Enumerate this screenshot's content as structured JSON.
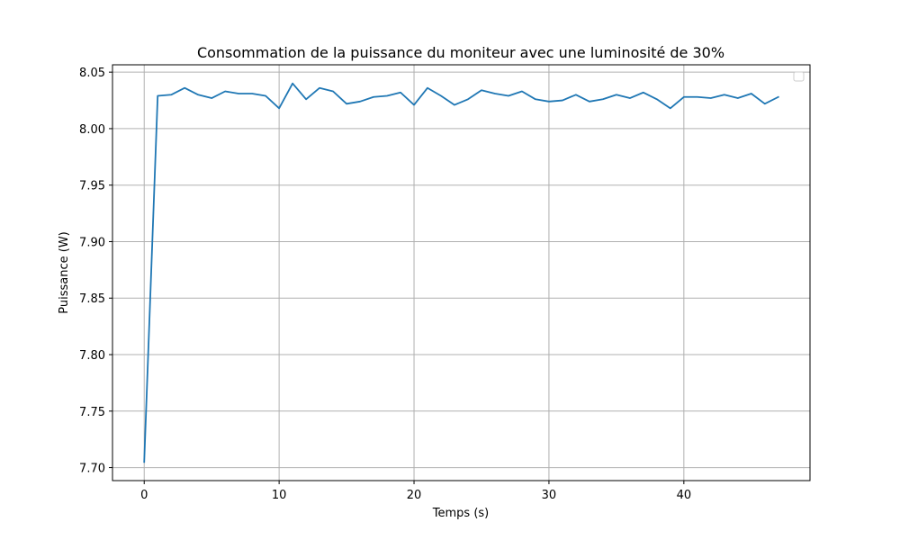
{
  "chart_data": {
    "type": "line",
    "title": "Consommation de la puissance du moniteur avec une luminosité de 30%",
    "xlabel": "Temps (s)",
    "ylabel": "Puissance (W)",
    "xlim": [
      -2.35,
      49.35
    ],
    "ylim": [
      7.6885,
      8.0565
    ],
    "xticks": [
      0,
      10,
      20,
      30,
      40
    ],
    "xtick_labels": [
      "0",
      "10",
      "20",
      "30",
      "40"
    ],
    "yticks": [
      7.7,
      7.75,
      7.8,
      7.85,
      7.9,
      7.95,
      8.0,
      8.05
    ],
    "ytick_labels": [
      "7.70",
      "7.75",
      "7.80",
      "7.85",
      "7.90",
      "7.95",
      "8.00",
      "8.05"
    ],
    "grid": true,
    "legend": "top-right",
    "series": [
      {
        "color": "#1f77b4",
        "x": [
          0,
          1,
          2,
          3,
          4,
          5,
          6,
          7,
          8,
          9,
          10,
          11,
          12,
          13,
          14,
          15,
          16,
          17,
          18,
          19,
          20,
          21,
          22,
          23,
          24,
          25,
          26,
          27,
          28,
          29,
          30,
          31,
          32,
          33,
          34,
          35,
          36,
          37,
          38,
          39,
          40,
          41,
          42,
          43,
          44,
          45,
          46,
          47
        ],
        "y": [
          7.705,
          8.029,
          8.03,
          8.036,
          8.03,
          8.027,
          8.033,
          8.031,
          8.031,
          8.029,
          8.018,
          8.04,
          8.026,
          8.036,
          8.033,
          8.022,
          8.024,
          8.028,
          8.029,
          8.032,
          8.021,
          8.036,
          8.029,
          8.021,
          8.026,
          8.034,
          8.031,
          8.029,
          8.033,
          8.026,
          8.024,
          8.025,
          8.03,
          8.024,
          8.026,
          8.03,
          8.027,
          8.032,
          8.026,
          8.018,
          8.028,
          8.028,
          8.027,
          8.03,
          8.027,
          8.031,
          8.022,
          8.028
        ]
      }
    ]
  }
}
